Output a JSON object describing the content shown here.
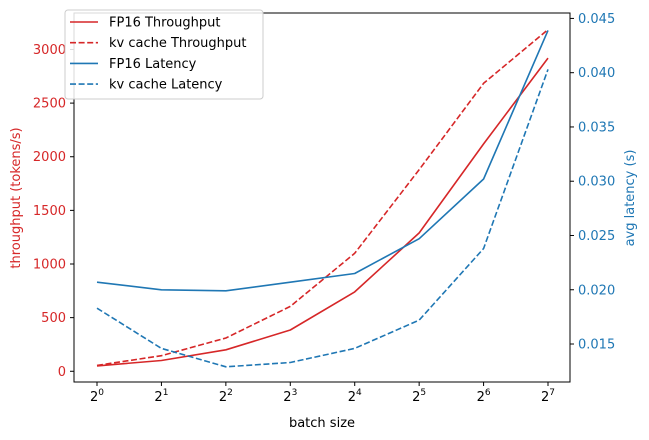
{
  "chart_data": {
    "type": "line",
    "xlabel": "batch size",
    "ylabel_left": "throughput (tokens/s)",
    "ylabel_right": "avg latency (s)",
    "x_scale": "log2",
    "x": [
      1,
      2,
      4,
      8,
      16,
      32,
      64,
      128
    ],
    "x_tick_labels": [
      {
        "base": "2",
        "exp": "0"
      },
      {
        "base": "2",
        "exp": "1"
      },
      {
        "base": "2",
        "exp": "2"
      },
      {
        "base": "2",
        "exp": "3"
      },
      {
        "base": "2",
        "exp": "4"
      },
      {
        "base": "2",
        "exp": "5"
      },
      {
        "base": "2",
        "exp": "6"
      },
      {
        "base": "2",
        "exp": "7"
      }
    ],
    "y_left_ticks": [
      "0",
      "500",
      "1000",
      "1500",
      "2000",
      "2500",
      "3000"
    ],
    "y_left_tick_values": [
      0,
      500,
      1000,
      1500,
      2000,
      2500,
      3000
    ],
    "y_left_lim": [
      -100,
      3340
    ],
    "y_right_ticks": [
      "0.015",
      "0.020",
      "0.025",
      "0.030",
      "0.035",
      "0.040",
      "0.045"
    ],
    "y_right_tick_values": [
      0.015,
      0.02,
      0.025,
      0.03,
      0.035,
      0.04,
      0.045
    ],
    "y_right_lim": [
      0.0115,
      0.0455
    ],
    "left_axis_color": "#d62728",
    "right_axis_color": "#1f77b4",
    "legend_position": "top-left",
    "series": [
      {
        "name": "FP16 Throughput",
        "axis": "left",
        "color": "#d62728",
        "dash": "solid",
        "values": [
          50,
          100,
          200,
          385,
          740,
          1290,
          2120,
          2920
        ]
      },
      {
        "name": "kv cache Throughput",
        "axis": "left",
        "color": "#d62728",
        "dash": "dashed",
        "values": [
          55,
          145,
          310,
          605,
          1100,
          1880,
          2685,
          3185
        ]
      },
      {
        "name": "FP16 Latency",
        "axis": "right",
        "color": "#1f77b4",
        "dash": "solid",
        "values": [
          0.0207,
          0.02,
          0.0199,
          0.0207,
          0.0215,
          0.0247,
          0.0302,
          0.0439
        ]
      },
      {
        "name": "kv cache Latency",
        "axis": "right",
        "color": "#1f77b4",
        "dash": "dashed",
        "values": [
          0.0183,
          0.0146,
          0.0129,
          0.0133,
          0.0146,
          0.0172,
          0.0238,
          0.0403
        ]
      }
    ]
  }
}
